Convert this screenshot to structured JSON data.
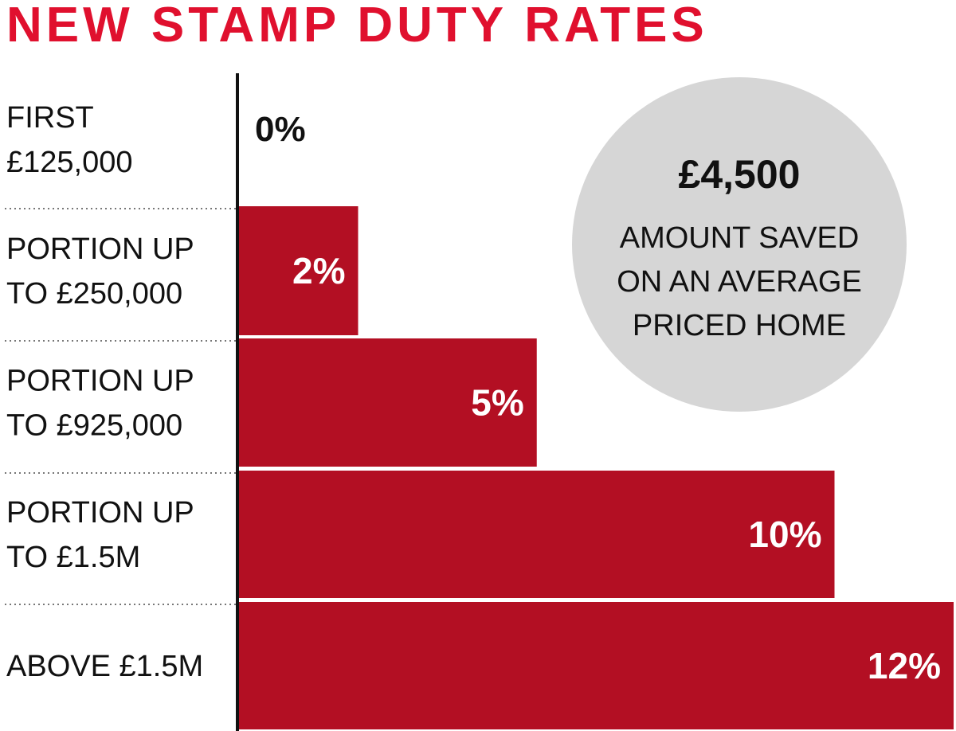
{
  "chart_data": {
    "type": "bar",
    "orientation": "horizontal",
    "title": "NEW STAMP DUTY RATES",
    "categories": [
      [
        "FIRST",
        "£125,000"
      ],
      [
        "PORTION UP",
        "TO £250,000"
      ],
      [
        "PORTION UP",
        "TO £925,000"
      ],
      [
        "PORTION UP",
        "TO £1.5M"
      ],
      [
        "ABOVE £1.5M"
      ]
    ],
    "values": [
      0,
      2,
      5,
      10,
      12
    ],
    "value_labels": [
      "0%",
      "2%",
      "5%",
      "10%",
      "12%"
    ],
    "xlim": [
      0,
      12
    ],
    "grid": false,
    "colors": {
      "title": "#e0102e",
      "bar": "#b30f23",
      "callout": "#d6d6d6"
    },
    "callout": {
      "value": "£4,500",
      "lines": [
        "AMOUNT SAVED",
        "ON AN AVERAGE",
        "PRICED HOME"
      ]
    }
  }
}
